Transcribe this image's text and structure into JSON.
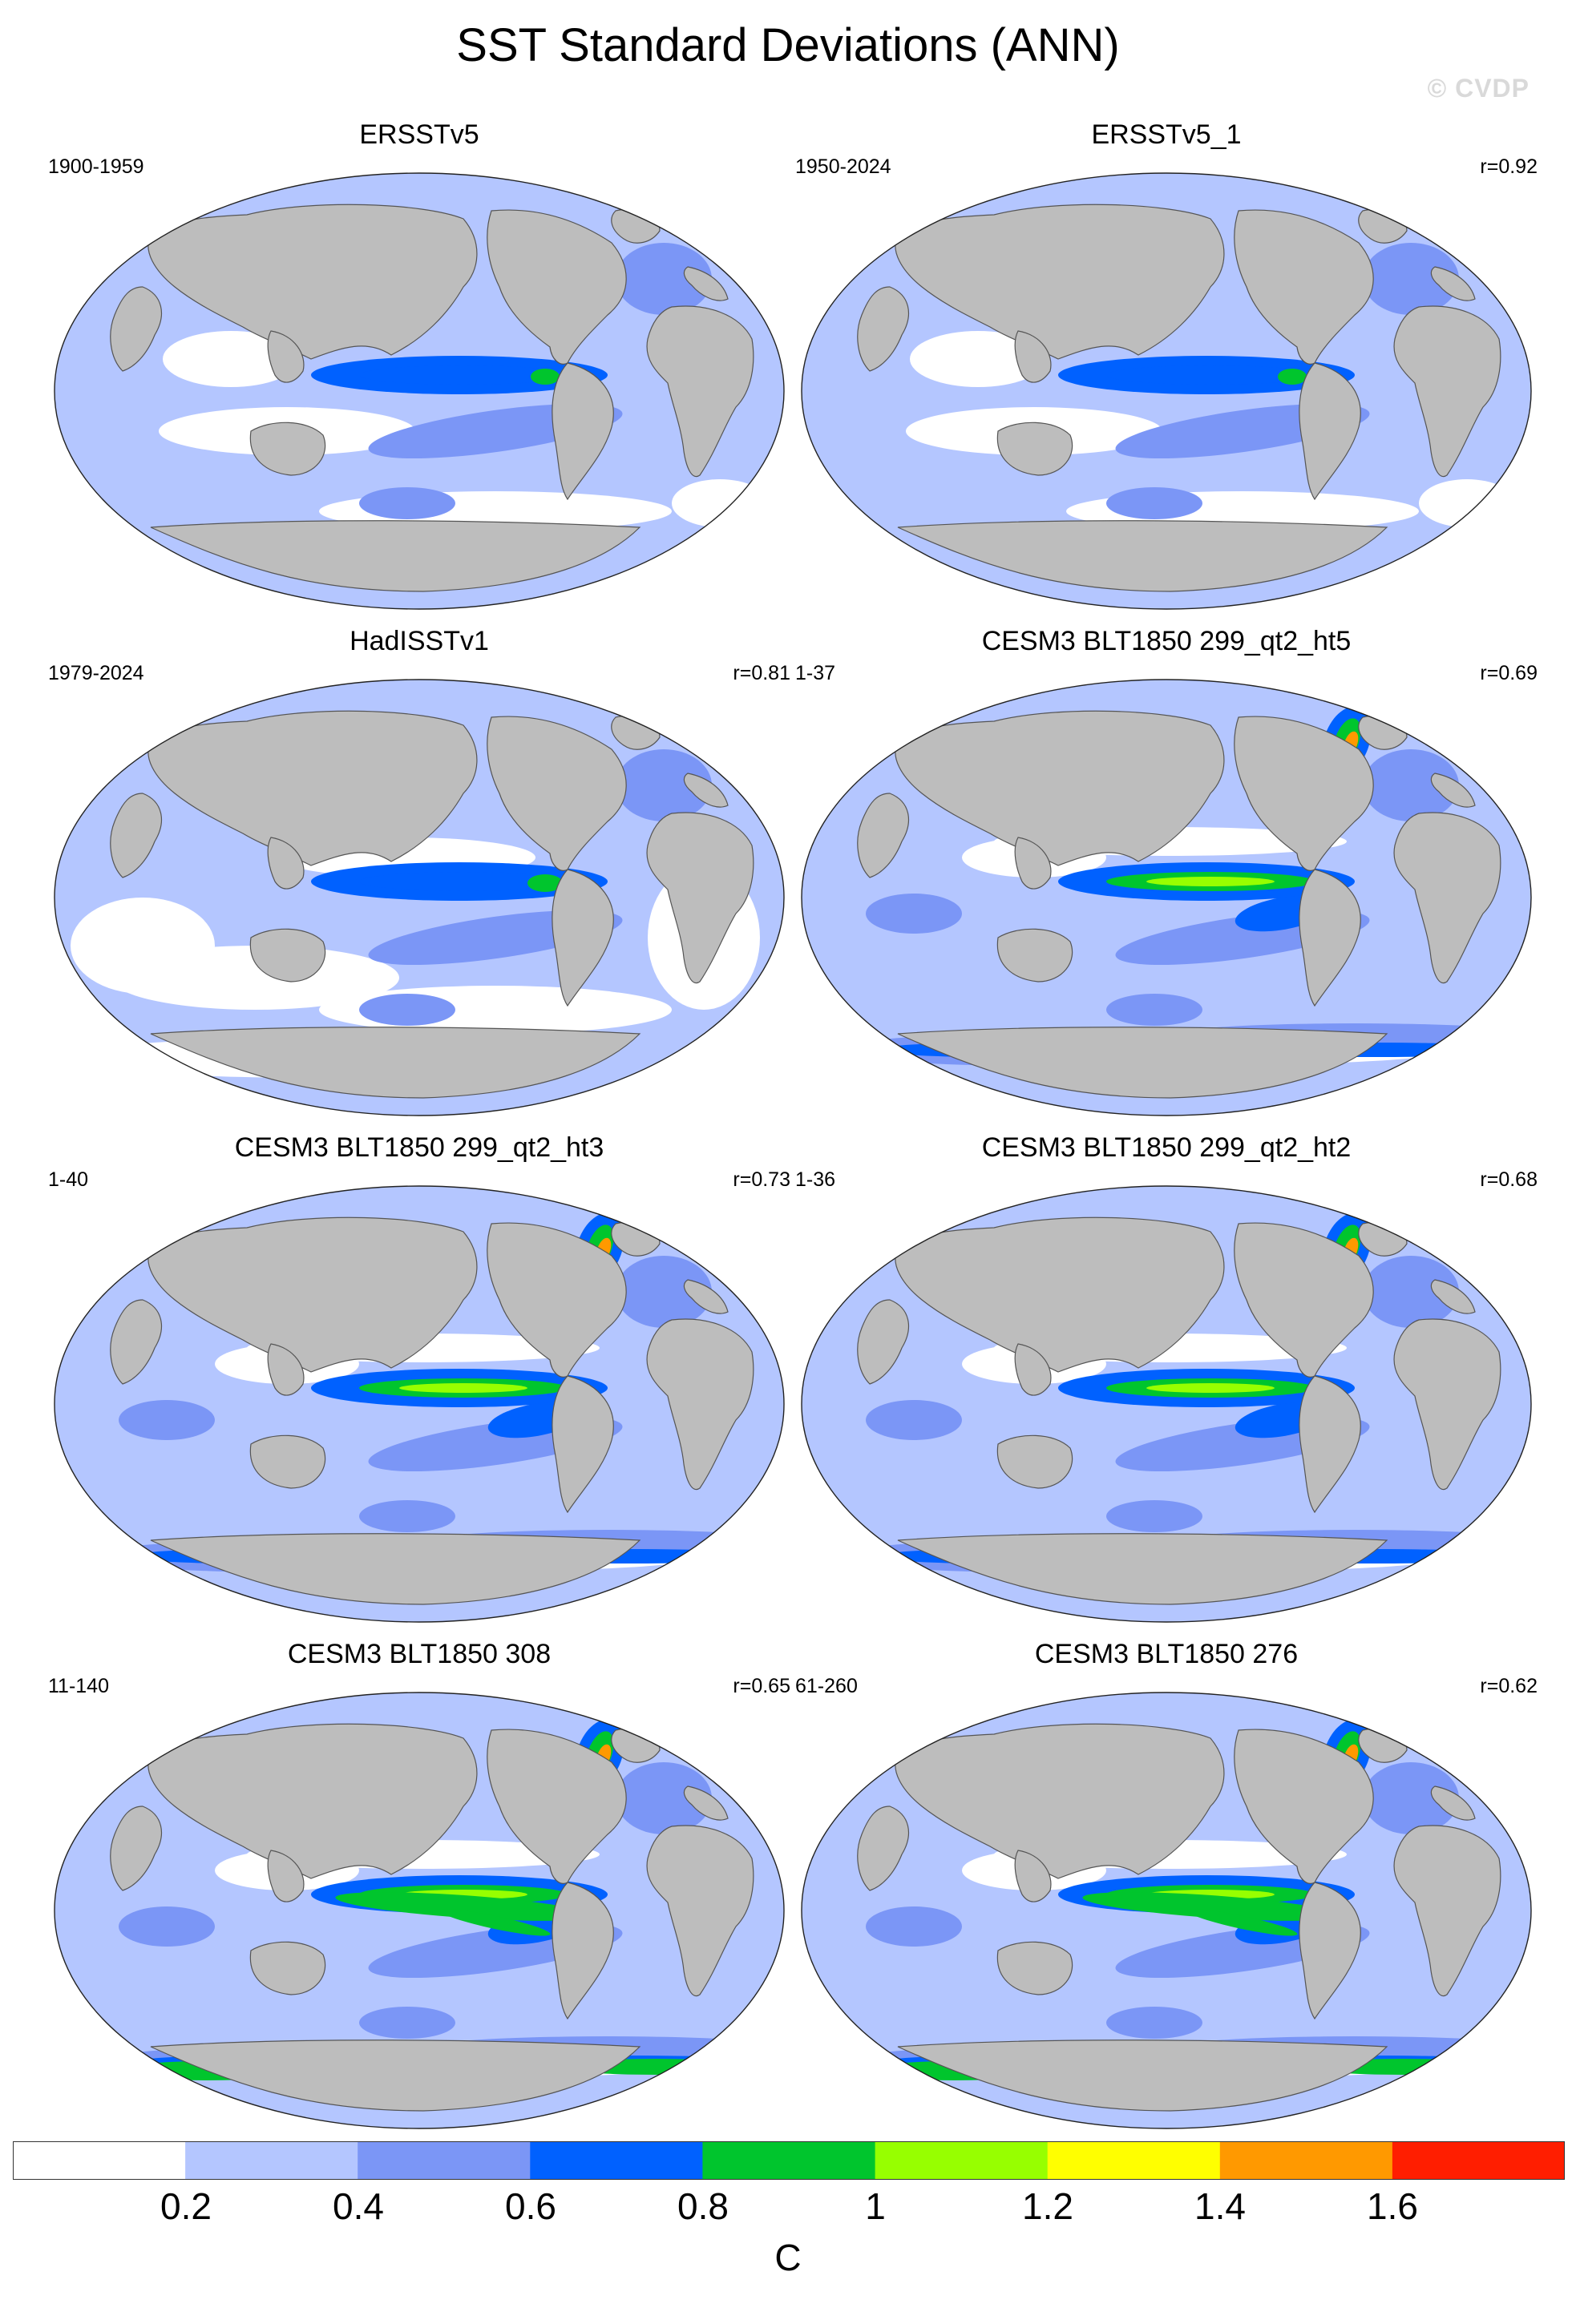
{
  "title": "SST Standard Deviations (ANN)",
  "watermark": "© CVDP",
  "panels": [
    {
      "title": "ERSSTv5",
      "period": "1900-1959",
      "corr": "",
      "variant": 0
    },
    {
      "title": "ERSSTv5_1",
      "period": "1950-2024",
      "corr": "r=0.92",
      "variant": 0
    },
    {
      "title": "HadISSTv1",
      "period": "1979-2024",
      "corr": "r=0.81",
      "variant": 1
    },
    {
      "title": "CESM3 BLT1850 299_qt2_ht5",
      "period": "1-37",
      "corr": "r=0.69",
      "variant": 2
    },
    {
      "title": "CESM3 BLT1850 299_qt2_ht3",
      "period": "1-40",
      "corr": "r=0.73",
      "variant": 2
    },
    {
      "title": "CESM3 BLT1850 299_qt2_ht2",
      "period": "1-36",
      "corr": "r=0.68",
      "variant": 2
    },
    {
      "title": "CESM3 BLT1850 308",
      "period": "11-140",
      "corr": "r=0.65",
      "variant": 3
    },
    {
      "title": "CESM3 BLT1850 276",
      "period": "61-260",
      "corr": "r=0.62",
      "variant": 3
    }
  ],
  "colorbar": {
    "labels": [
      "0.2",
      "0.4",
      "0.6",
      "0.8",
      "1",
      "1.2",
      "1.4",
      "1.6"
    ],
    "colors": [
      "#ffffff",
      "#b4c6ff",
      "#7b96f6",
      "#0061ff",
      "#00c52d",
      "#97ff00",
      "#ffff00",
      "#ff9900",
      "#ff1e00"
    ],
    "units": "C"
  },
  "map_colors": {
    "land": "#bdbdbd",
    "ocean_base": "#b4c6ff",
    "coast": "#555555"
  }
}
